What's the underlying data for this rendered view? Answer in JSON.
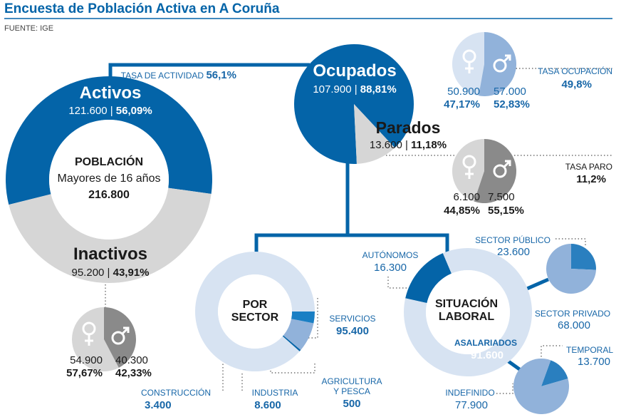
{
  "header": {
    "title": "Encuesta de Población Activa en A Coruña",
    "source": "FUENTE: IGE"
  },
  "colors": {
    "dark_blue": "#0464a8",
    "mid_blue": "#91b2da",
    "light_blue": "#d7e3f2",
    "grey": "#d6d6d6",
    "dark_grey": "#8a8a8a",
    "text": "#1a1a1a",
    "accent_text": "#1867a8"
  },
  "chart_data": [
    {
      "type": "pie",
      "title": "POBLACIÓN",
      "subtitle": "Mayores de 16 años",
      "total": "216.800",
      "slices": [
        {
          "name": "Activos",
          "value": 121600,
          "value_label": "121.600",
          "pct_label": "56,09%"
        },
        {
          "name": "Inactivos",
          "value": 95200,
          "value_label": "95.200",
          "pct_label": "43,91%"
        }
      ],
      "activity_rate_label": "TASA DE ACTIVIDAD",
      "activity_rate": "56,1%"
    },
    {
      "type": "pie",
      "title": "Activos",
      "slices": [
        {
          "name": "Ocupados",
          "value": 107900,
          "value_label": "107.900",
          "pct_label": "88,81%"
        },
        {
          "name": "Parados",
          "value": 13600,
          "value_label": "13.600",
          "pct_label": "11,18%"
        }
      ]
    },
    {
      "type": "pie",
      "title": "Ocupados por sexo",
      "slices": [
        {
          "name": "Mujeres",
          "value": 50900,
          "value_label": "50.900",
          "pct": 47.17,
          "pct_label": "47,17%"
        },
        {
          "name": "Hombres",
          "value": 57000,
          "value_label": "57.000",
          "pct": 52.83,
          "pct_label": "52,83%"
        }
      ],
      "rate_label": "TASA OCUPACIÓN",
      "rate": "49,8%"
    },
    {
      "type": "pie",
      "title": "Parados por sexo",
      "slices": [
        {
          "name": "Mujeres",
          "value": 6100,
          "value_label": "6.100",
          "pct": 44.85,
          "pct_label": "44,85%"
        },
        {
          "name": "Hombres",
          "value": 7500,
          "value_label": "7.500",
          "pct": 55.15,
          "pct_label": "55,15%"
        }
      ],
      "rate_label": "TASA PARO",
      "rate": "11,2%"
    },
    {
      "type": "pie",
      "title": "Inactivos por sexo",
      "slices": [
        {
          "name": "Mujeres",
          "value": 54900,
          "value_label": "54.900",
          "pct": 57.67,
          "pct_label": "57,67%"
        },
        {
          "name": "Hombres",
          "value": 40300,
          "value_label": "40.300",
          "pct": 42.33,
          "pct_label": "42,33%"
        }
      ]
    },
    {
      "type": "pie",
      "title_line1": "POR",
      "title_line2": "SECTOR",
      "slices": [
        {
          "name": "SERVICIOS",
          "value": 95400,
          "value_label": "95.400"
        },
        {
          "name_line1": "AGRICULTURA",
          "name_line2": "Y PESCA",
          "value": 500,
          "value_label": "500"
        },
        {
          "name": "INDUSTRIA",
          "value": 8600,
          "value_label": "8.600"
        },
        {
          "name": "CONSTRUCCIÓN",
          "value": 3400,
          "value_label": "3.400"
        }
      ]
    },
    {
      "type": "pie",
      "title_line1": "SITUACIÓN",
      "title_line2": "LABORAL",
      "slices": [
        {
          "name": "AUTÓNOMOS",
          "value": 16300,
          "value_label": "16.300"
        },
        {
          "name": "ASALARIADOS",
          "value": 91600,
          "value_label": "91.600"
        }
      ]
    },
    {
      "type": "pie",
      "title": "Asalariados por sector",
      "slices": [
        {
          "name": "SECTOR PÚBLICO",
          "value": 23600,
          "value_label": "23.600"
        },
        {
          "name": "SECTOR PRIVADO",
          "value": 68000,
          "value_label": "68.000"
        }
      ]
    },
    {
      "type": "pie",
      "title": "Asalariados por contrato",
      "slices": [
        {
          "name": "TEMPORAL",
          "value": 13700,
          "value_label": "13.700"
        },
        {
          "name": "INDEFINIDO",
          "value": 77900,
          "value_label": "77.900"
        }
      ]
    }
  ]
}
